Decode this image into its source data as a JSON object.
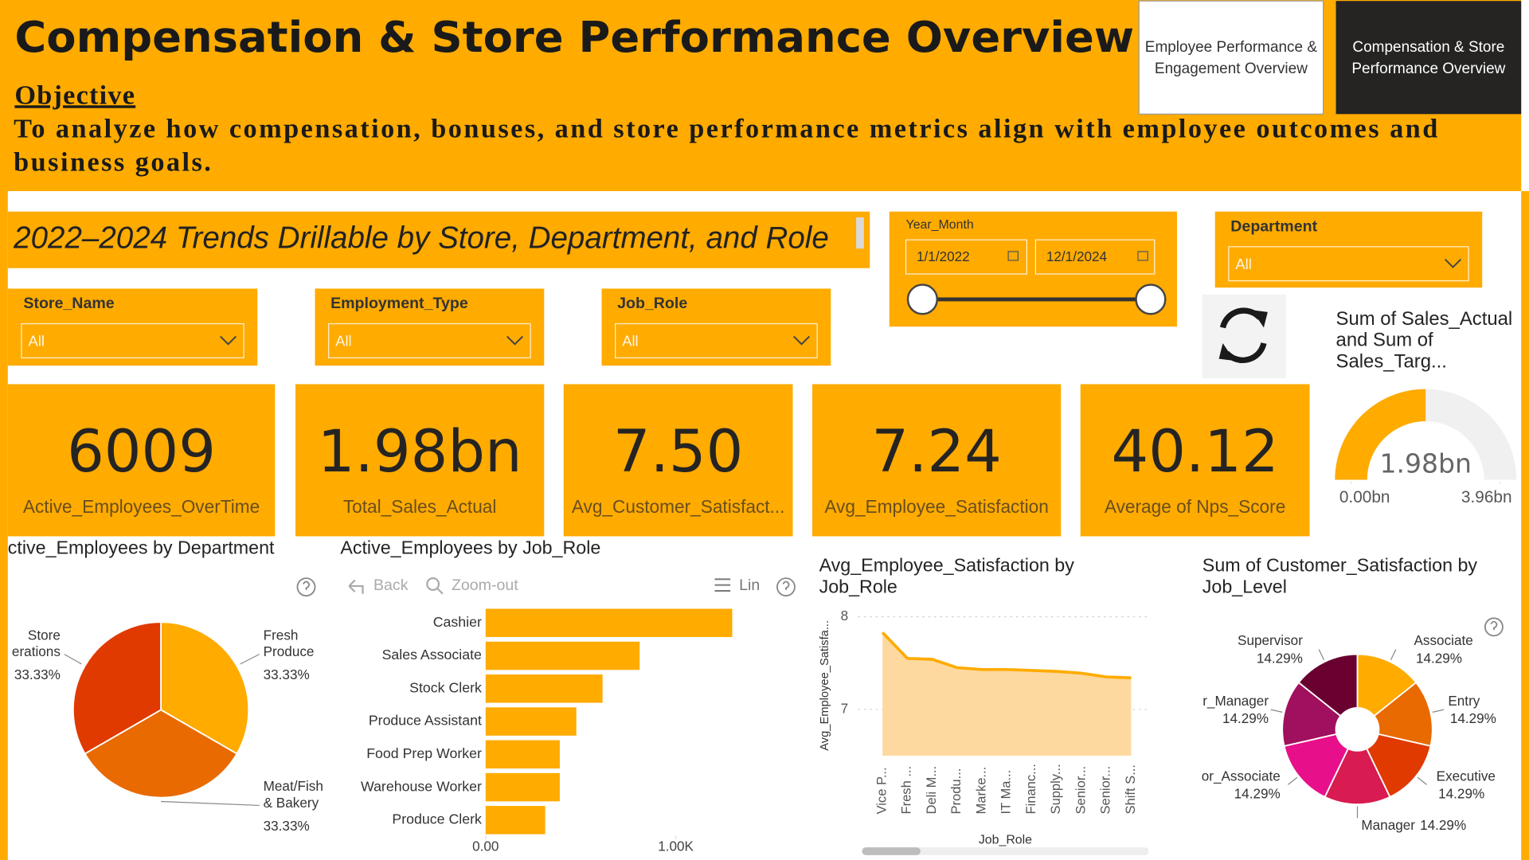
{
  "header": {
    "title": "Compensation & Store Performance Overview",
    "objective_label": "Objective",
    "objective": "To analyze how compensation, bonuses, and store performance metrics align with employee outcomes and business goals."
  },
  "nav": [
    "Employee Performance & Engagement Overview",
    "Compensation & Store Performance Overview"
  ],
  "banner": "2022–2024 Trends Drillable by Store, Department, and Role",
  "filters": {
    "store_name": {
      "label": "Store_Name",
      "value": "All"
    },
    "employment_type": {
      "label": "Employment_Type",
      "value": "All"
    },
    "job_role": {
      "label": "Job_Role",
      "value": "All"
    },
    "department": {
      "label": "Department",
      "value": "All"
    },
    "year_month": {
      "label": "Year_Month",
      "start": "1/1/2022",
      "end": "12/1/2024"
    }
  },
  "kpis": [
    {
      "value": "6009",
      "label": "Active_Employees_OverTime"
    },
    {
      "value": "1.98bn",
      "label": "Total_Sales_Actual"
    },
    {
      "value": "7.50",
      "label": "Avg_Customer_Satisfact..."
    },
    {
      "value": "7.24",
      "label": "Avg_Employee_Satisfaction"
    },
    {
      "value": "40.12",
      "label": "Average of Nps_Score"
    }
  ],
  "toolbar": {
    "back": "Back",
    "zoom_out": "Zoom-out",
    "lin": "Lin"
  },
  "chart_data": [
    {
      "type": "pie",
      "title": "ctive_Employees by Department",
      "categories": [
        "Fresh Produce",
        "Meat/Fish & Bakery",
        "Store erations"
      ],
      "values": [
        33.33,
        33.33,
        33.33
      ],
      "value_labels": [
        "33.33%",
        "33.33%",
        "33.33%"
      ],
      "colors": [
        "#ffab00",
        "#e86a00",
        "#e03a00"
      ]
    },
    {
      "type": "bar",
      "orientation": "horizontal",
      "title": "Active_Employees by Job_Role",
      "categories": [
        "Cashier",
        "Sales Associate",
        "Stock Clerk",
        "Produce Assistant",
        "Food Prep Worker",
        "Warehouse Worker",
        "Produce Clerk"
      ],
      "values": [
        1297,
        810,
        615,
        477,
        390,
        390,
        313
      ],
      "color": "#ffab00",
      "xlim": [
        0,
        1450
      ],
      "xticks": [
        {
          "value": 0,
          "label": "0.00"
        },
        {
          "value": 1000,
          "label": "1.00K"
        }
      ]
    },
    {
      "type": "area",
      "title": "Avg_Employee_Satisfaction by Job_Role",
      "x_label": "Job_Role",
      "y_label": "Avg_Employee_Satisfa...",
      "categories": [
        "Vice P...",
        "Fresh ...",
        "Deli M...",
        "Produ...",
        "Marke...",
        "IT Ma...",
        "Financ...",
        "Supply...",
        "Senior...",
        "Senior...",
        "Shift S..."
      ],
      "values": [
        7.83,
        7.55,
        7.54,
        7.45,
        7.43,
        7.43,
        7.42,
        7.41,
        7.39,
        7.35,
        7.34
      ],
      "color": "#ffab00",
      "fill": "#fdd9a0",
      "ylim": [
        6.5,
        8.1
      ],
      "yticks": [
        7,
        8
      ],
      "grid": true
    },
    {
      "type": "donut",
      "title": "Sum of Customer_Satisfaction by Job_Level",
      "categories": [
        "Associate",
        "Entry",
        "Executive",
        "Manager",
        "or_Associate",
        "r_Manager",
        "Supervisor"
      ],
      "values": [
        14.29,
        14.29,
        14.29,
        14.29,
        14.29,
        14.29,
        14.29
      ],
      "value_labels": [
        "14.29%",
        "14.29%",
        "14.29%",
        "14.29%",
        "14.29%",
        "14.29%",
        "14.29%"
      ],
      "colors": [
        "#ffab00",
        "#e86a00",
        "#e03a00",
        "#d81b50",
        "#e8108a",
        "#a0105e",
        "#6a0030"
      ]
    },
    {
      "type": "gauge",
      "title": "Sum of Sales_Actual and Sum of Sales_Targ...",
      "value": 1.98,
      "value_label": "1.98bn",
      "color": "#ffab00",
      "track": "#f0f0f0",
      "ylim": [
        0,
        3.96
      ],
      "yticks": [
        {
          "value": 0,
          "label": "0.00bn"
        },
        {
          "value": 3.96,
          "label": "3.96bn"
        }
      ]
    }
  ]
}
